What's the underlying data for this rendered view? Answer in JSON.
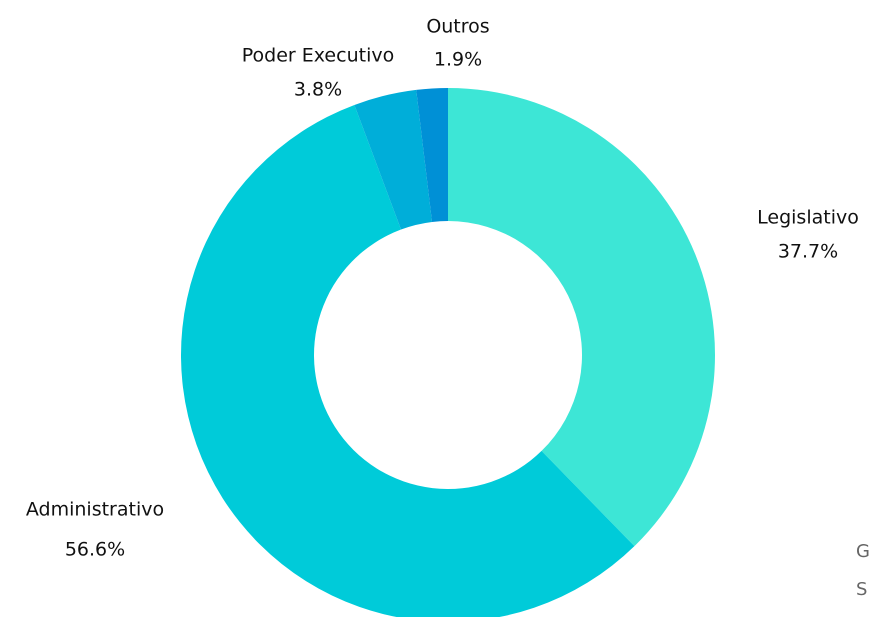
{
  "chart_data": {
    "type": "pie",
    "categories": [
      "Legislativo",
      "Administrativo",
      "Poder Executivo",
      "Outros"
    ],
    "values": [
      37.7,
      56.6,
      3.8,
      1.9
    ],
    "value_labels": [
      "37.7%",
      "56.6%",
      "3.8%",
      "1.9%"
    ],
    "colors": [
      "#3de6d6",
      "#00cbd9",
      "#00aed9",
      "#0090d6"
    ],
    "donut": true,
    "annotations": [
      "G",
      "S"
    ]
  }
}
